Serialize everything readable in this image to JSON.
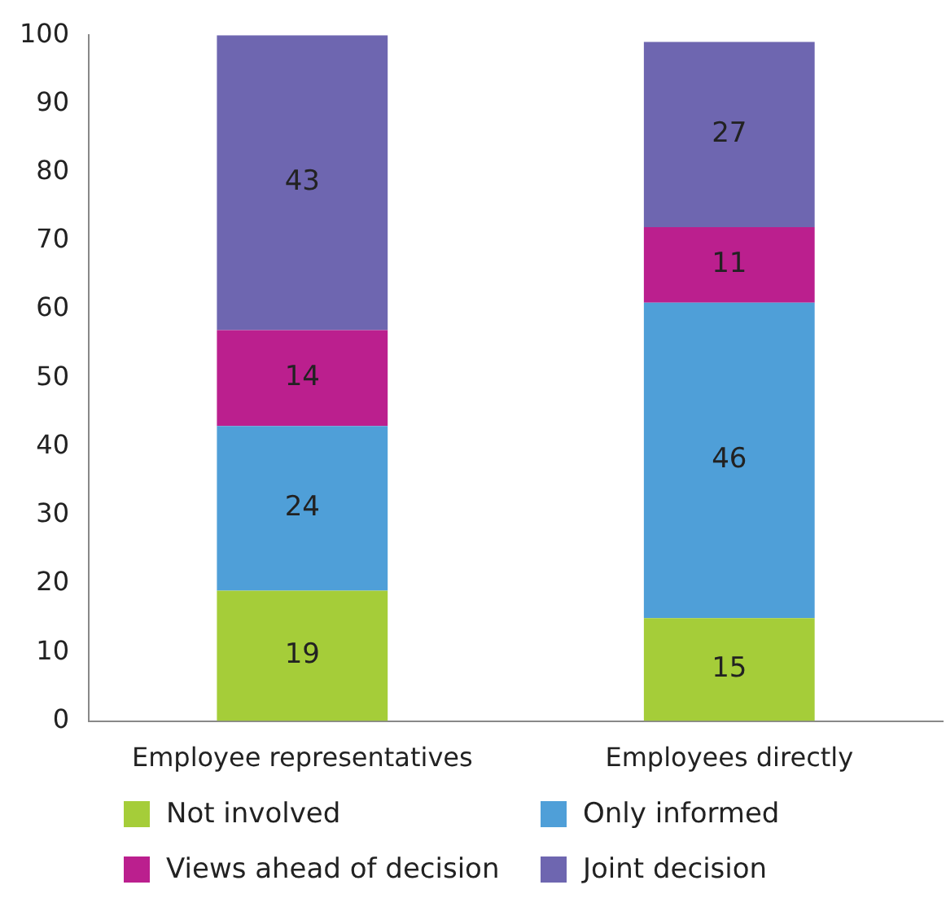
{
  "chart_data": {
    "type": "bar",
    "stacked": true,
    "categories": [
      "Employee representatives",
      "Employees directly"
    ],
    "series": [
      {
        "name": "Not involved",
        "color": "#a5cd39",
        "values": [
          19,
          15
        ]
      },
      {
        "name": "Only informed",
        "color": "#4f9fd8",
        "values": [
          24,
          46
        ]
      },
      {
        "name": "Views ahead of decision",
        "color": "#bb1f8e",
        "values": [
          14,
          11
        ]
      },
      {
        "name": "Joint decision",
        "color": "#6e66b0",
        "values": [
          43,
          27
        ]
      }
    ],
    "ylim": [
      0,
      100
    ],
    "yticks": [
      0,
      10,
      20,
      30,
      40,
      50,
      60,
      70,
      80,
      90,
      100
    ],
    "grid": false,
    "legend": "bottom",
    "data_labels": true
  }
}
